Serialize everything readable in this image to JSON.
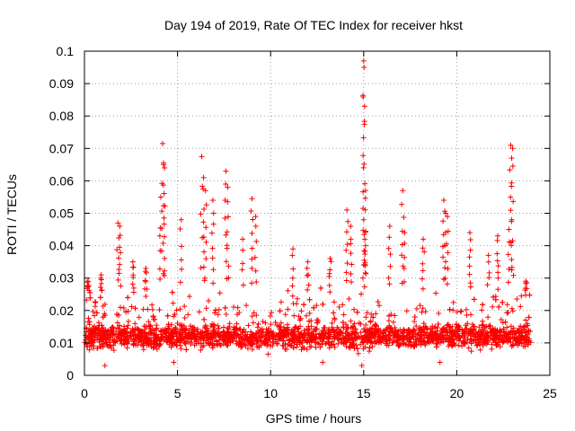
{
  "chart_data": {
    "type": "scatter",
    "title": "Day 194 of 2019, Rate Of TEC Index for receiver hkst",
    "xlabel": "GPS time / hours",
    "ylabel": "ROTI / TECUs",
    "xlim": [
      0,
      25
    ],
    "ylim": [
      0,
      0.1
    ],
    "xticks": [
      0,
      5,
      10,
      15,
      20,
      25
    ],
    "xtick_labels": [
      "0",
      "5",
      "10",
      "15",
      "20",
      "25"
    ],
    "yticks": [
      0,
      0.01,
      0.02,
      0.03,
      0.04,
      0.05,
      0.06,
      0.07,
      0.08,
      0.09,
      0.1
    ],
    "ytick_labels": [
      "0",
      "0.01",
      "0.02",
      "0.03",
      "0.04",
      "0.05",
      "0.06",
      "0.07",
      "0.08",
      "0.09",
      "0.1"
    ],
    "grid": true,
    "marker": "+",
    "series": [
      {
        "name": "ROTI",
        "color": "#ff0000",
        "dense_band": {
          "x_range": [
            0,
            24
          ],
          "typical_min": 0.005,
          "typical_max": 0.025,
          "center": 0.012
        },
        "notable_points": [
          {
            "x": 0.2,
            "y": 0.029
          },
          {
            "x": 0.9,
            "y": 0.031
          },
          {
            "x": 1.8,
            "y": 0.047
          },
          {
            "x": 1.9,
            "y": 0.046
          },
          {
            "x": 2.6,
            "y": 0.035
          },
          {
            "x": 3.3,
            "y": 0.033
          },
          {
            "x": 4.1,
            "y": 0.055
          },
          {
            "x": 4.2,
            "y": 0.0715
          },
          {
            "x": 4.25,
            "y": 0.065
          },
          {
            "x": 4.3,
            "y": 0.064
          },
          {
            "x": 5.2,
            "y": 0.048
          },
          {
            "x": 6.3,
            "y": 0.0675
          },
          {
            "x": 6.4,
            "y": 0.061
          },
          {
            "x": 6.5,
            "y": 0.057
          },
          {
            "x": 6.9,
            "y": 0.054
          },
          {
            "x": 7.6,
            "y": 0.063
          },
          {
            "x": 7.7,
            "y": 0.058
          },
          {
            "x": 8.5,
            "y": 0.042
          },
          {
            "x": 9.0,
            "y": 0.0545
          },
          {
            "x": 9.2,
            "y": 0.049
          },
          {
            "x": 11.2,
            "y": 0.039
          },
          {
            "x": 12.0,
            "y": 0.035
          },
          {
            "x": 13.2,
            "y": 0.036
          },
          {
            "x": 14.1,
            "y": 0.051
          },
          {
            "x": 14.3,
            "y": 0.046
          },
          {
            "x": 15.0,
            "y": 0.097
          },
          {
            "x": 15.02,
            "y": 0.095
          },
          {
            "x": 15.05,
            "y": 0.083
          },
          {
            "x": 15.1,
            "y": 0.057
          },
          {
            "x": 15.0,
            "y": 0.048
          },
          {
            "x": 15.1,
            "y": 0.04
          },
          {
            "x": 16.4,
            "y": 0.046
          },
          {
            "x": 17.1,
            "y": 0.057
          },
          {
            "x": 17.2,
            "y": 0.044
          },
          {
            "x": 18.2,
            "y": 0.042
          },
          {
            "x": 19.3,
            "y": 0.054
          },
          {
            "x": 19.4,
            "y": 0.05
          },
          {
            "x": 19.5,
            "y": 0.049
          },
          {
            "x": 20.7,
            "y": 0.044
          },
          {
            "x": 21.7,
            "y": 0.037
          },
          {
            "x": 22.2,
            "y": 0.043
          },
          {
            "x": 22.9,
            "y": 0.071
          },
          {
            "x": 23.0,
            "y": 0.07
          },
          {
            "x": 22.95,
            "y": 0.067
          },
          {
            "x": 22.8,
            "y": 0.045
          },
          {
            "x": 23.7,
            "y": 0.029
          },
          {
            "x": 1.1,
            "y": 0.003
          },
          {
            "x": 4.8,
            "y": 0.004
          },
          {
            "x": 14.9,
            "y": 0.003
          },
          {
            "x": 19.1,
            "y": 0.004
          },
          {
            "x": 12.8,
            "y": 0.004
          }
        ]
      }
    ]
  }
}
